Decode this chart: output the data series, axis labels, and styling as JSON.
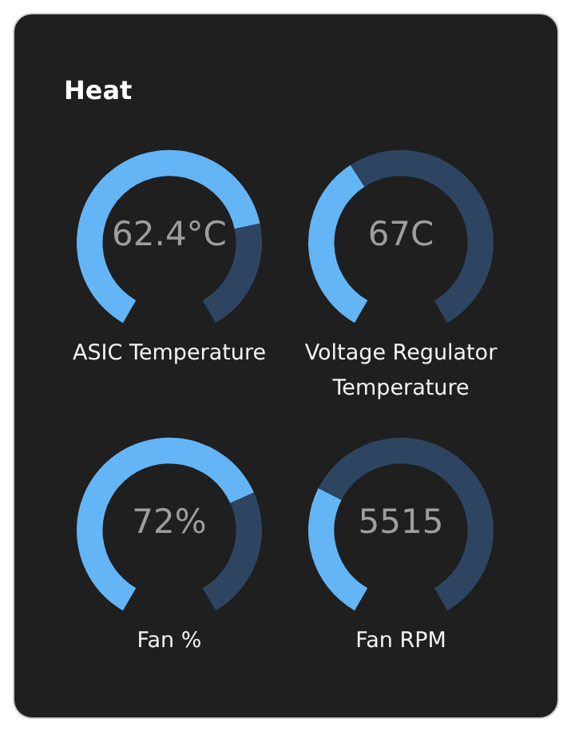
{
  "chart_data": [
    {
      "type": "donut",
      "title": "Heat",
      "xlabel": "ASIC Temperature",
      "annotations": [
        "62.4°C"
      ],
      "categories": [
        null,
        null
      ],
      "values": [
        76,
        24
      ],
      "colors": [
        "#64b5f6",
        "#2e4562"
      ]
    },
    {
      "type": "donut",
      "xlabel": "Voltage Regulator Temperature",
      "annotations": [
        "67C"
      ],
      "categories": [
        null,
        null
      ],
      "values": [
        39,
        61
      ],
      "colors": [
        "#64b5f6",
        "#2e4562"
      ]
    },
    {
      "type": "donut",
      "xlabel": "Fan %",
      "annotations": [
        "72%"
      ],
      "categories": [
        null,
        null
      ],
      "values": [
        72,
        28
      ],
      "colors": [
        "#64b5f6",
        "#2e4562"
      ]
    },
    {
      "type": "donut",
      "xlabel": "Fan RPM",
      "annotations": [
        "5515"
      ],
      "categories": [
        null,
        null
      ],
      "values": [
        29,
        71
      ],
      "colors": [
        "#64b5f6",
        "#2e4562"
      ]
    }
  ]
}
